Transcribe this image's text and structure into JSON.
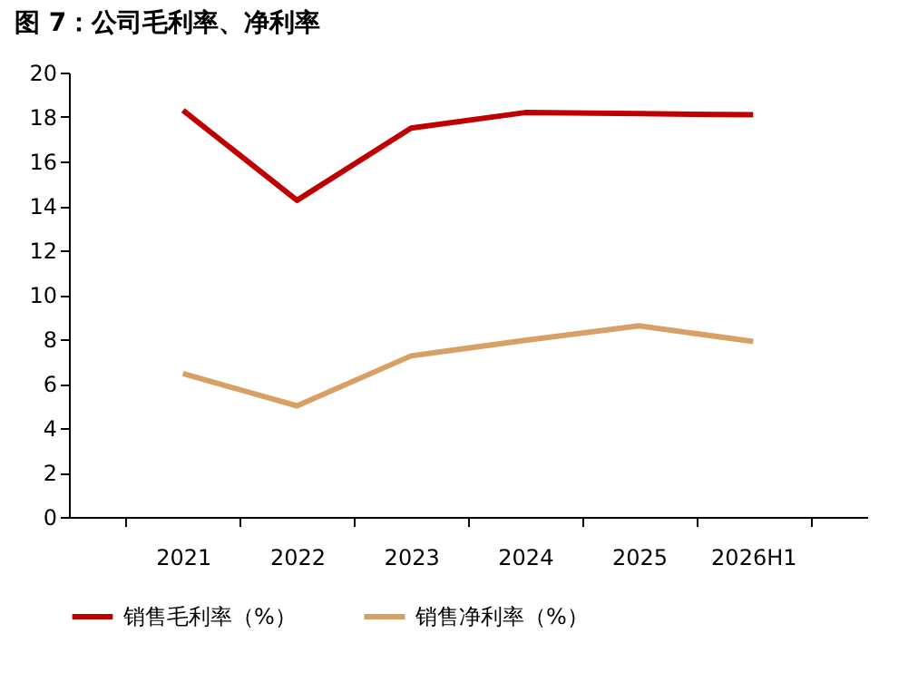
{
  "chart_data": {
    "type": "line",
    "title": "图 7：公司毛利率、净利率",
    "categories": [
      "2021",
      "2022",
      "2023",
      "2024",
      "2025",
      "2026H1"
    ],
    "series": [
      {
        "name": "销售毛利率（%）",
        "color": "#c00000",
        "values": [
          18.3,
          14.25,
          17.5,
          18.2,
          18.15,
          18.1
        ]
      },
      {
        "name": "销售净利率（%）",
        "color": "#d9a066",
        "values": [
          6.45,
          5.0,
          7.25,
          7.95,
          8.6,
          7.9
        ]
      }
    ],
    "ylim": [
      0,
      20
    ],
    "yticks": [
      0,
      2,
      4,
      6,
      8,
      10,
      12,
      14,
      16,
      18,
      20
    ],
    "grid": false,
    "legend": "bottom"
  }
}
